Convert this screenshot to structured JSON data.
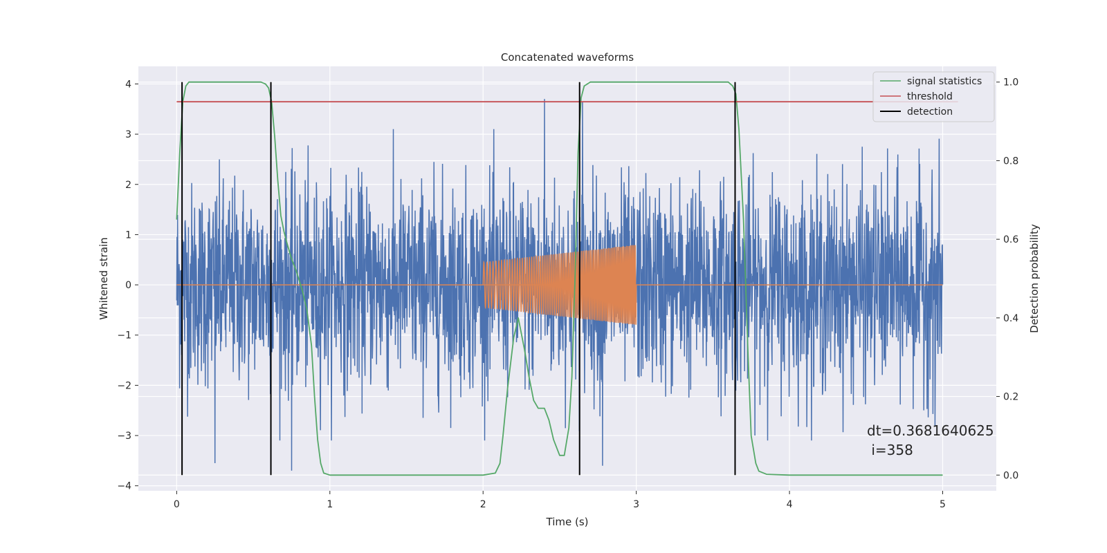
{
  "chart_data": {
    "type": "line",
    "title": "Concatenated waveforms",
    "xlabel": "Time (s)",
    "ylabel": "Whitened strain",
    "y2label": "Detection probability",
    "xlim": [
      -0.25,
      5.35
    ],
    "ylim": [
      -4.1,
      4.35
    ],
    "y2lim": [
      -0.04,
      1.04
    ],
    "x_ticks": [
      0,
      1,
      2,
      3,
      4,
      5
    ],
    "y_ticks": [
      4,
      3,
      2,
      1,
      0,
      -1,
      -2,
      -3,
      -4
    ],
    "y2_ticks": [
      1.0,
      0.8,
      0.6,
      0.4,
      0.2,
      0.0
    ],
    "x_tick_labels": [
      "0",
      "1",
      "2",
      "3",
      "4",
      "5"
    ],
    "y_tick_labels": [
      "4",
      "3",
      "2",
      "1",
      "0",
      "−1",
      "−2",
      "−3",
      "−4"
    ],
    "y2_tick_labels": [
      "1.0",
      "0.8",
      "0.6",
      "0.4",
      "0.2",
      "0.0"
    ],
    "grid": true,
    "legend": {
      "placement": "upper right",
      "entries": [
        {
          "label": "signal statistics",
          "color": "#55a868"
        },
        {
          "label": "threshold",
          "color": "#c44e52"
        },
        {
          "label": "detection",
          "color": "#000000"
        }
      ]
    },
    "series": [
      {
        "name": "signal statistics",
        "axis": "y2",
        "color": "#55a868",
        "x": [
          0.0,
          0.02,
          0.04,
          0.06,
          0.08,
          0.1,
          0.15,
          0.3,
          0.5,
          0.55,
          0.58,
          0.6,
          0.62,
          0.64,
          0.66,
          0.68,
          0.7,
          0.72,
          0.75,
          0.78,
          0.82,
          0.85,
          0.88,
          0.9,
          0.92,
          0.94,
          0.96,
          1.0,
          1.5,
          2.0,
          2.08,
          2.11,
          2.13,
          2.16,
          2.2,
          2.23,
          2.27,
          2.3,
          2.33,
          2.36,
          2.38,
          2.4,
          2.43,
          2.46,
          2.5,
          2.53,
          2.56,
          2.58,
          2.6,
          2.62,
          2.64,
          2.66,
          2.7,
          2.75,
          2.8,
          3.0,
          3.4,
          3.6,
          3.63,
          3.65,
          3.67,
          3.7,
          3.73,
          3.75,
          3.78,
          3.8,
          3.85,
          4.0,
          4.5,
          5.0
        ],
        "y": [
          0.65,
          0.82,
          0.95,
          0.99,
          1.0,
          1.0,
          1.0,
          1.0,
          1.0,
          1.0,
          0.995,
          0.985,
          0.95,
          0.86,
          0.75,
          0.66,
          0.62,
          0.59,
          0.55,
          0.52,
          0.47,
          0.42,
          0.33,
          0.2,
          0.09,
          0.03,
          0.005,
          0.0,
          0.0,
          0.0,
          0.005,
          0.03,
          0.1,
          0.22,
          0.35,
          0.4,
          0.32,
          0.25,
          0.19,
          0.17,
          0.17,
          0.17,
          0.14,
          0.09,
          0.05,
          0.05,
          0.12,
          0.25,
          0.5,
          0.82,
          0.96,
          0.99,
          1.0,
          1.0,
          1.0,
          1.0,
          1.0,
          1.0,
          0.99,
          0.97,
          0.88,
          0.65,
          0.3,
          0.1,
          0.03,
          0.01,
          0.002,
          0.0,
          0.0,
          0.0
        ]
      },
      {
        "name": "threshold",
        "axis": "y2",
        "color": "#c44e52",
        "x": [
          0.0,
          5.1
        ],
        "y": [
          0.95,
          0.95
        ]
      }
    ],
    "noise": {
      "color": "#4c72b0",
      "x_range": [
        0.0,
        5.0
      ],
      "typical_amplitude": 1.0,
      "spikes": [
        [
          2.4,
          3.7
        ],
        [
          2.65,
          3.65
        ],
        [
          0.75,
          -3.7
        ],
        [
          2.78,
          -3.6
        ],
        [
          0.25,
          -3.55
        ],
        [
          4.95,
          -2.8
        ]
      ]
    },
    "injection": {
      "color": "#dd8452",
      "x_range": [
        2.0,
        3.0
      ],
      "amplitude": [
        0.45,
        0.8
      ],
      "baseline": 0
    },
    "detections": {
      "color": "#000000",
      "x": [
        0.035,
        0.615,
        2.63,
        3.645
      ],
      "y2_range": [
        0.0,
        1.0
      ]
    },
    "annotation": {
      "lines": [
        "dt=0.3681640625",
        " i=358"
      ],
      "x": 4.5,
      "y": -3.0
    }
  }
}
